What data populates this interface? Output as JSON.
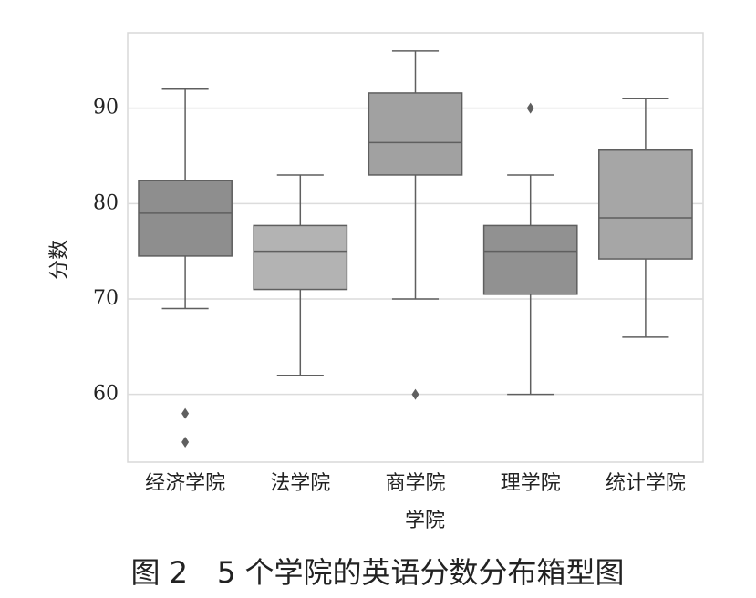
{
  "chart_data": {
    "type": "box",
    "xlabel": "学院",
    "ylabel": "分数",
    "categories": [
      "经济学院",
      "法学院",
      "商学院",
      "理学院",
      "统计学院"
    ],
    "colors": [
      "#8e8e8e",
      "#b3b3b3",
      "#a1a1a1",
      "#919191",
      "#a6a6a6"
    ],
    "boxes": [
      {
        "whislo": 69,
        "q1": 74.5,
        "med": 79,
        "q3": 82.4,
        "whishi": 92,
        "fliers": [
          58,
          55
        ]
      },
      {
        "whislo": 62,
        "q1": 71,
        "med": 75,
        "q3": 77.7,
        "whishi": 83,
        "fliers": []
      },
      {
        "whislo": 70,
        "q1": 83,
        "med": 86.4,
        "q3": 91.6,
        "whishi": 96,
        "fliers": [
          60
        ]
      },
      {
        "whislo": 60,
        "q1": 70.5,
        "med": 75,
        "q3": 77.7,
        "whishi": 83,
        "fliers": [
          90
        ]
      },
      {
        "whislo": 66,
        "q1": 74.2,
        "med": 78.5,
        "q3": 85.6,
        "whishi": 91,
        "fliers": []
      }
    ],
    "ylim": [
      52.9,
      97.9
    ],
    "yticks": [
      60,
      70,
      80,
      90
    ],
    "grid": true
  },
  "caption": "图 2　5 个学院的英语分数分布箱型图"
}
